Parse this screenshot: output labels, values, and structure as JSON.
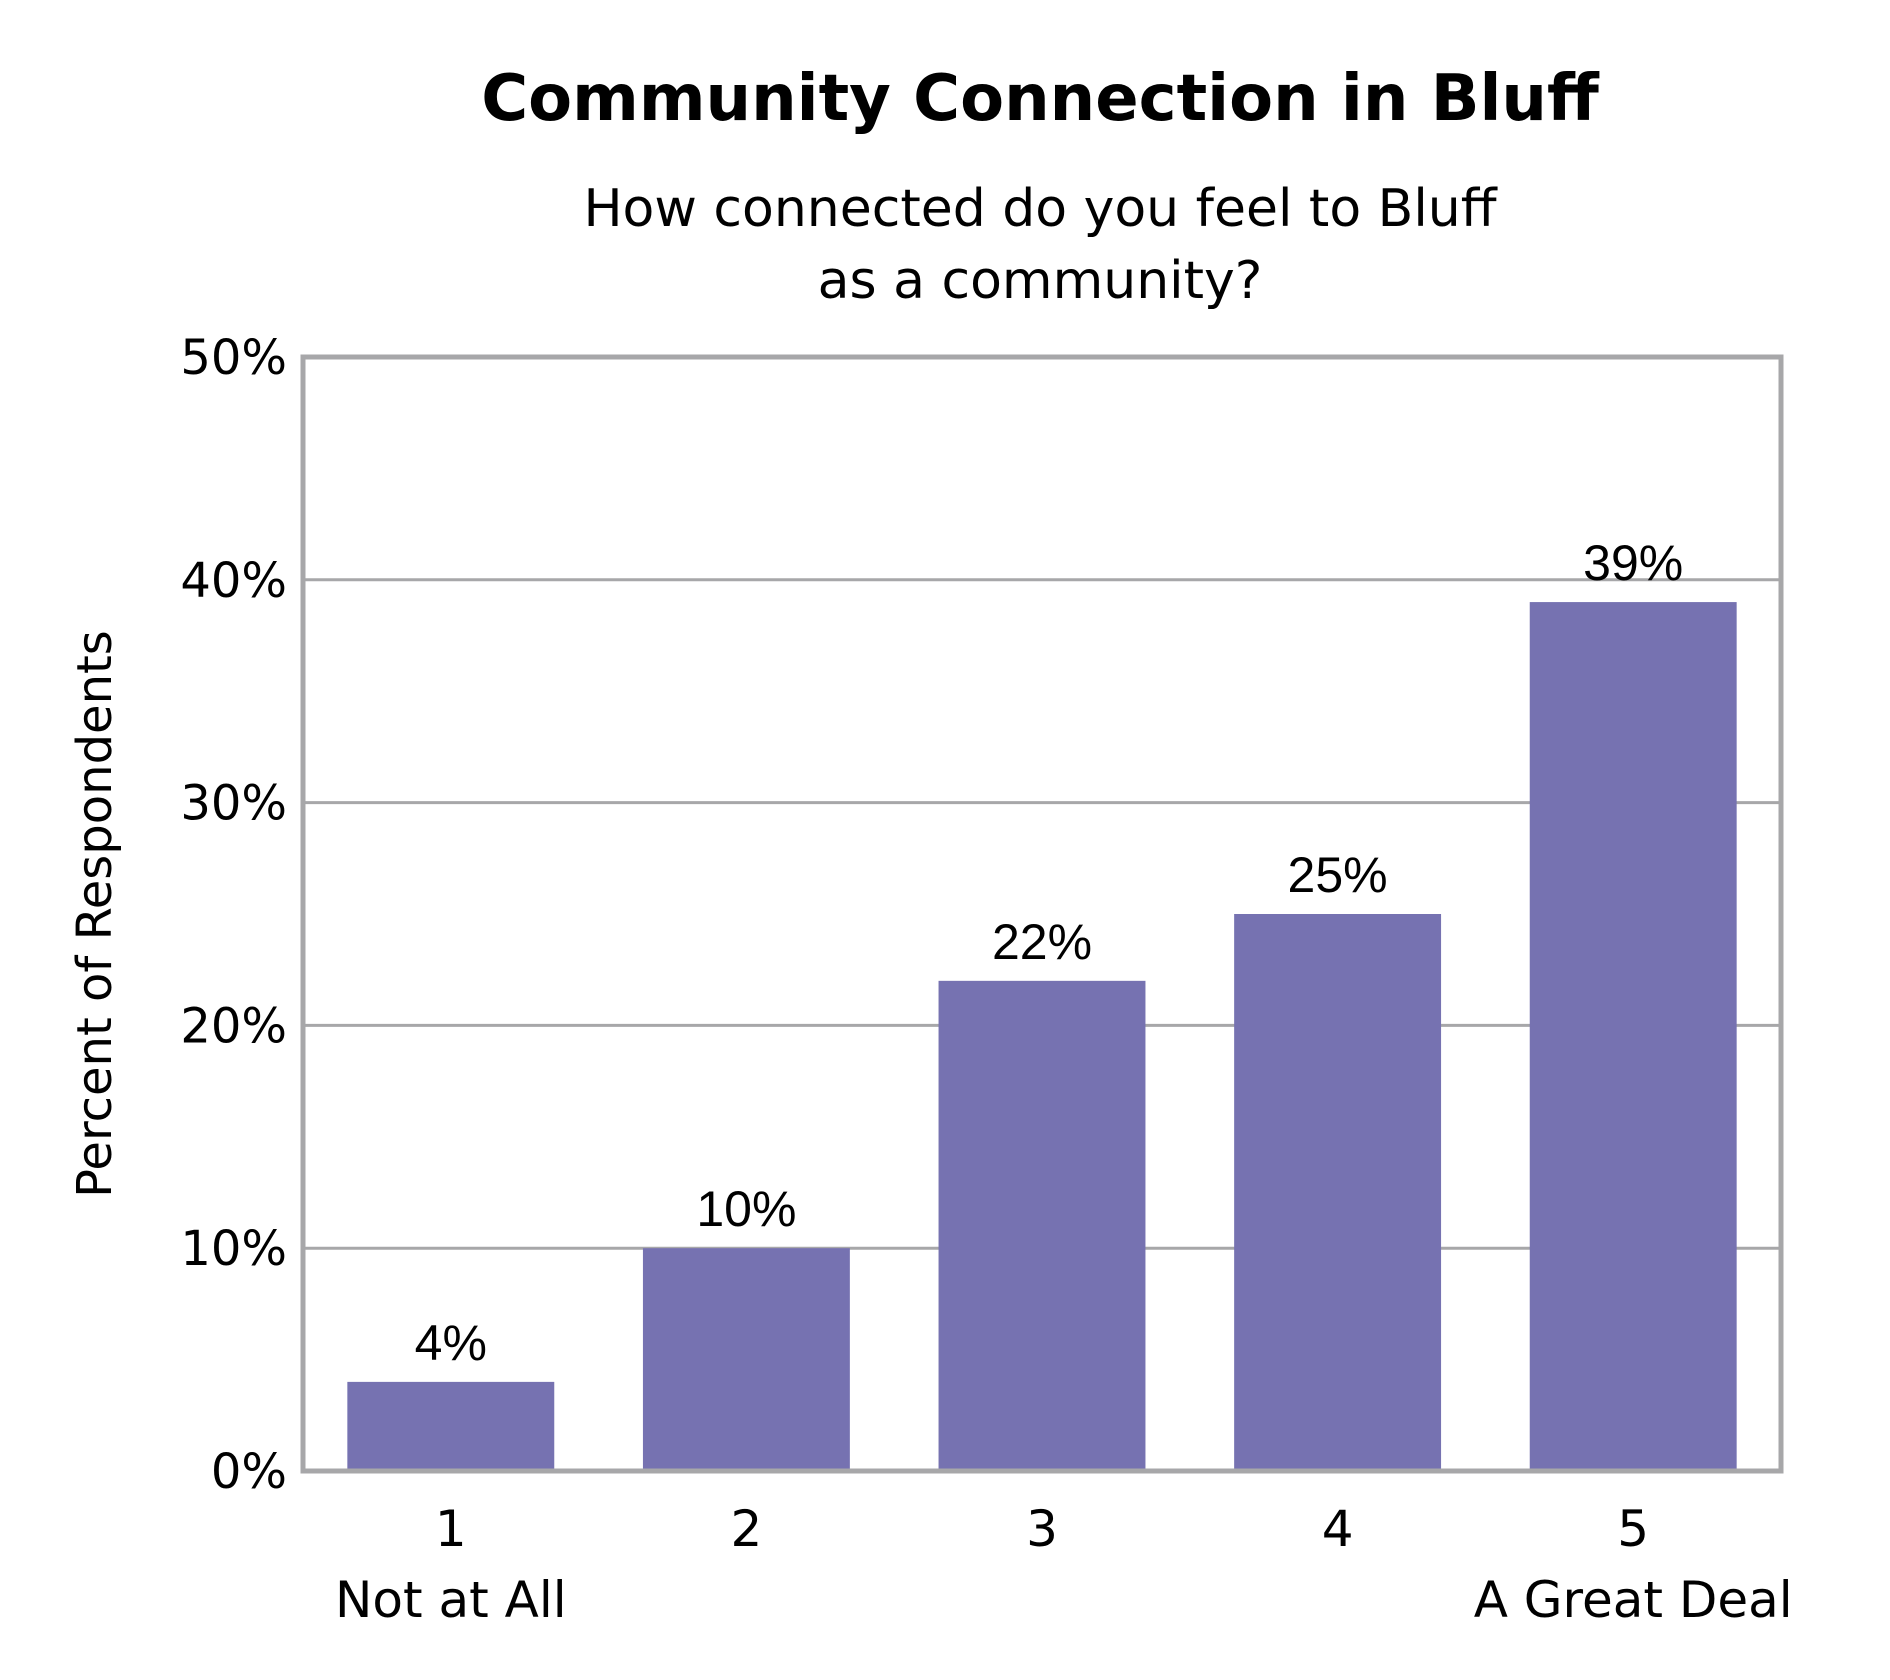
{
  "chart_data": {
    "type": "bar",
    "title": "Community Connection in Bluff",
    "subtitle_lines": [
      "How connected do you feel to Bluff",
      "as a community?"
    ],
    "ylabel": "Percent of Respondents",
    "xlabel": "",
    "categories": [
      "1",
      "2",
      "3",
      "4",
      "5"
    ],
    "category_sublabels": [
      "Not at All",
      "",
      "",
      "",
      "A Great Deal"
    ],
    "values": [
      4,
      10,
      22,
      25,
      39
    ],
    "data_labels": [
      "4%",
      "10%",
      "22%",
      "25%",
      "39%"
    ],
    "ylim": [
      0,
      50
    ],
    "yticks": [
      0,
      10,
      20,
      30,
      40,
      50
    ],
    "ytick_labels": [
      "0%",
      "10%",
      "20%",
      "30%",
      "40%",
      "50%"
    ],
    "grid": true,
    "legend": "none",
    "bar_color": "#7672b1",
    "frame_color": "#a7a7a9"
  }
}
